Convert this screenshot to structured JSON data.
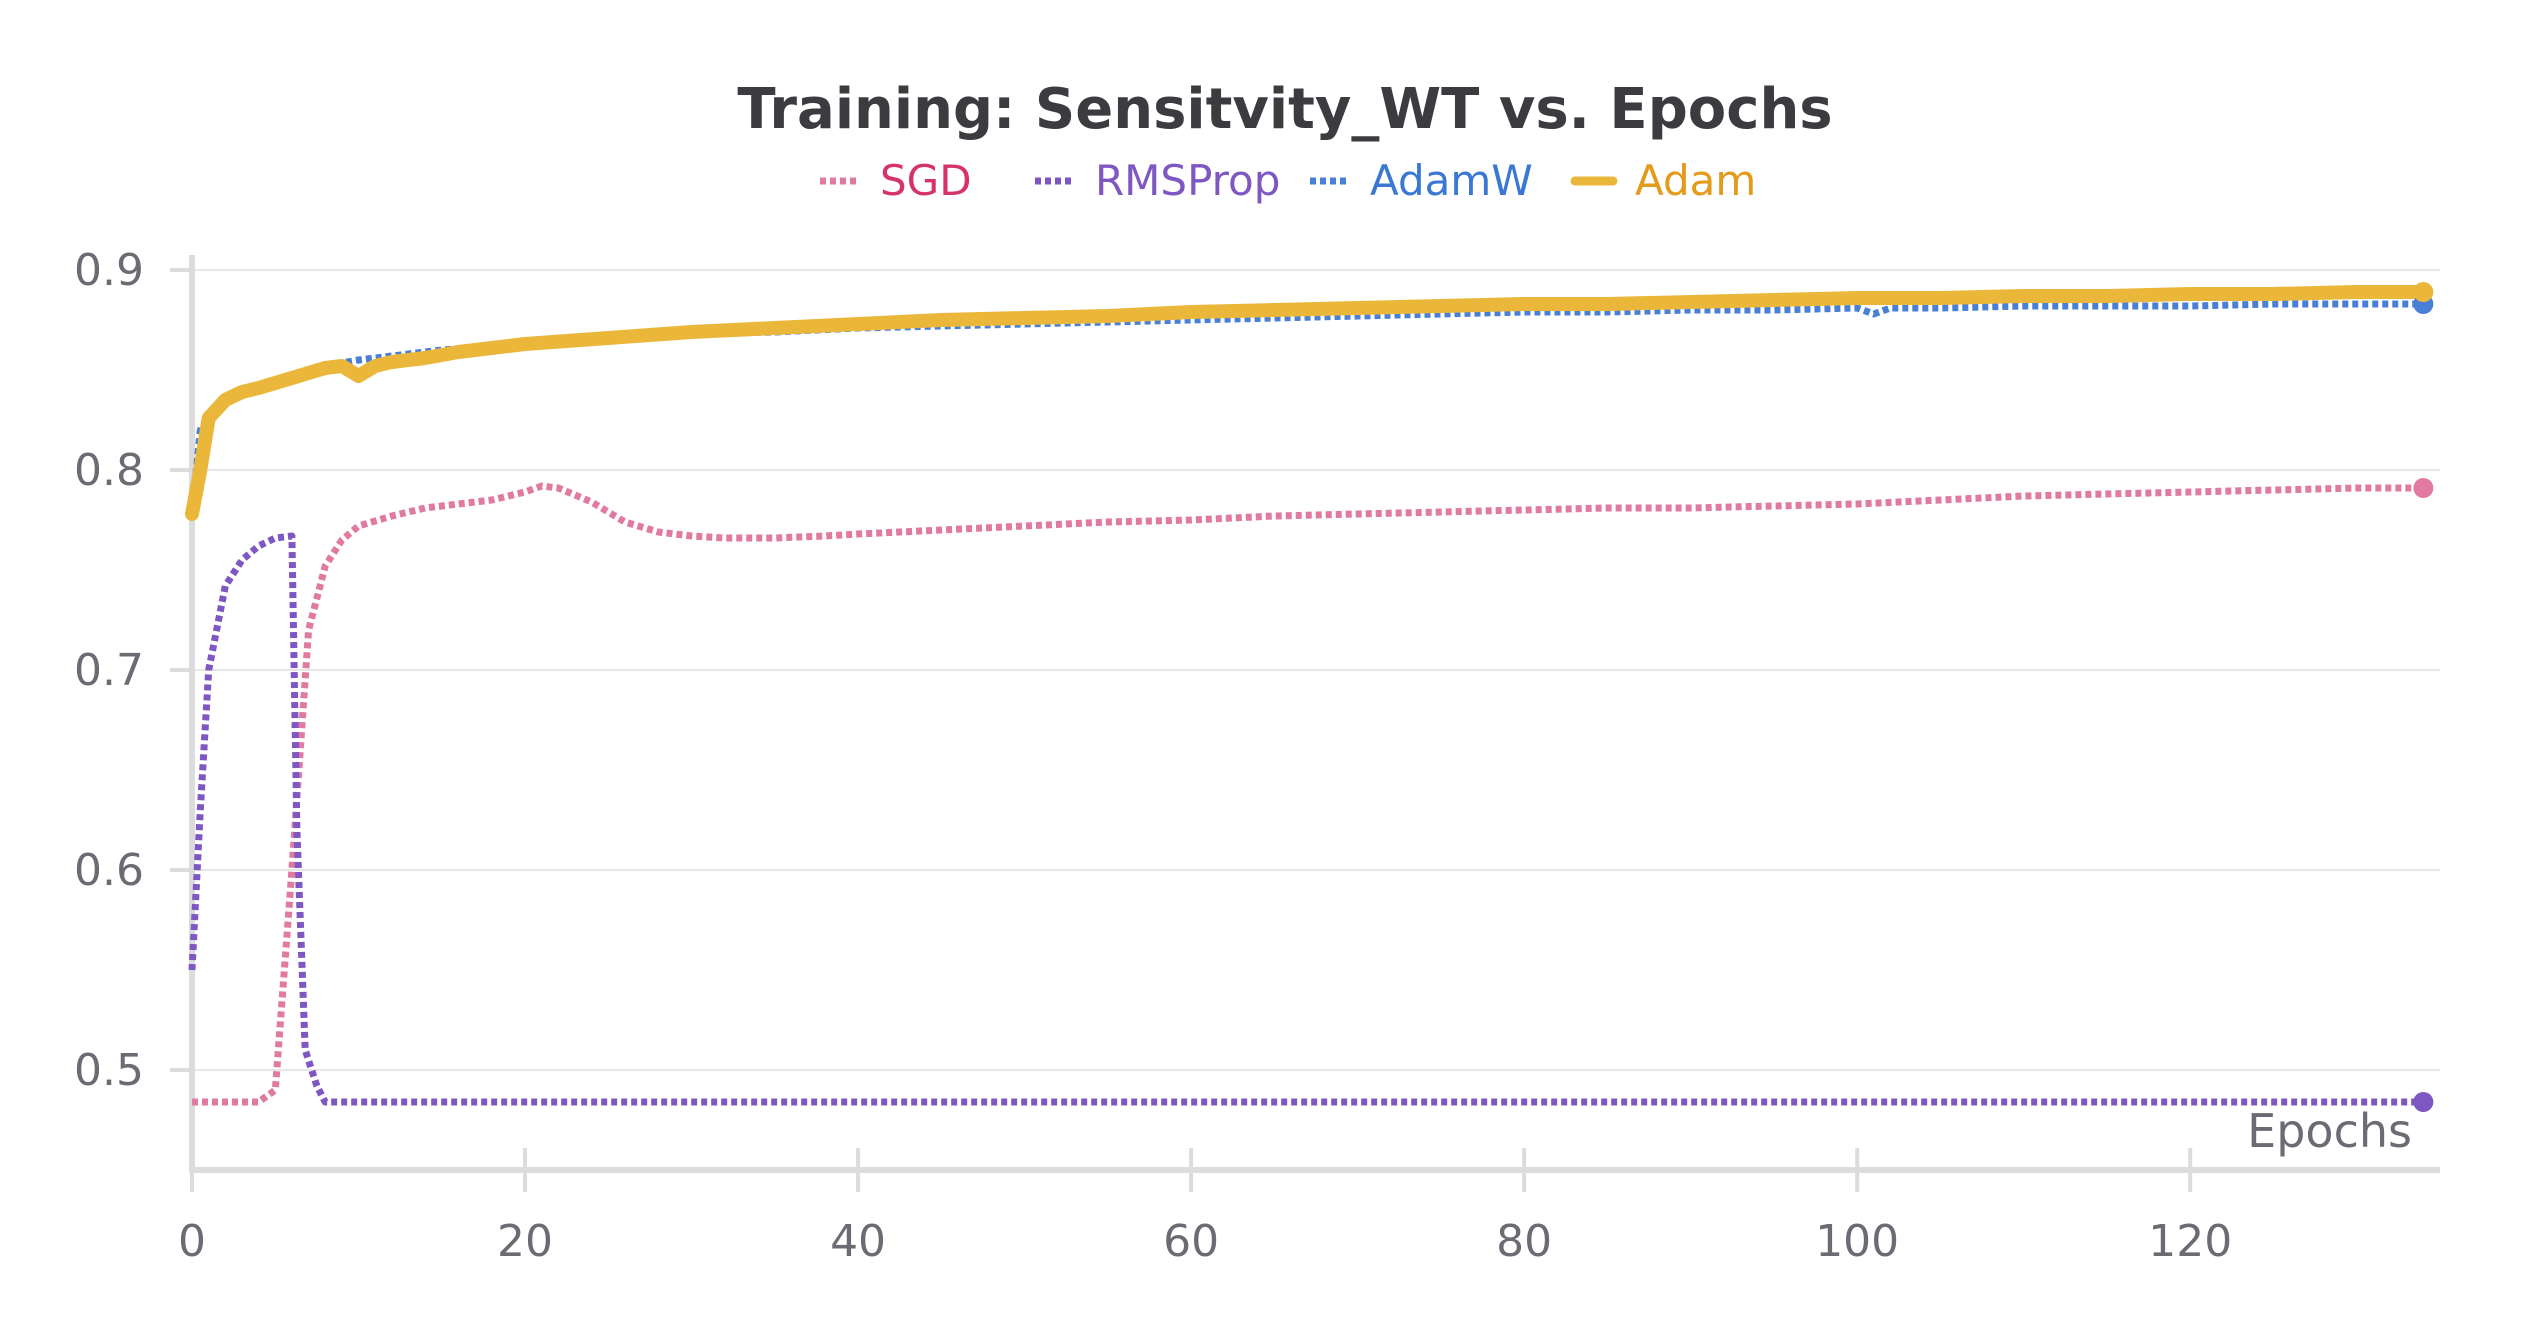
{
  "chart_data": {
    "type": "line",
    "title": "Training: Sensitvity_WT vs. Epochs",
    "xlabel": "Epochs",
    "ylabel": "",
    "xlim": [
      0,
      135
    ],
    "ylim": [
      0.45,
      0.92
    ],
    "x_ticks": [
      0,
      20,
      40,
      60,
      80,
      100,
      120
    ],
    "y_ticks": [
      0.5,
      0.6,
      0.7,
      0.8,
      0.9
    ],
    "grid": true,
    "legend_position": "top-center",
    "series": [
      {
        "name": "SGD",
        "color": "#e07aa1",
        "label_color": "#d6336c",
        "style": "dotted",
        "points": [
          [
            0,
            0.484
          ],
          [
            1,
            0.484
          ],
          [
            2,
            0.484
          ],
          [
            3,
            0.484
          ],
          [
            4,
            0.484
          ],
          [
            5,
            0.49
          ],
          [
            6,
            0.6
          ],
          [
            7,
            0.72
          ],
          [
            8,
            0.752
          ],
          [
            9,
            0.765
          ],
          [
            10,
            0.772
          ],
          [
            12,
            0.777
          ],
          [
            14,
            0.781
          ],
          [
            16,
            0.783
          ],
          [
            18,
            0.785
          ],
          [
            20,
            0.789
          ],
          [
            21,
            0.792
          ],
          [
            22,
            0.791
          ],
          [
            24,
            0.784
          ],
          [
            26,
            0.774
          ],
          [
            28,
            0.769
          ],
          [
            30,
            0.767
          ],
          [
            32,
            0.766
          ],
          [
            35,
            0.766
          ],
          [
            38,
            0.767
          ],
          [
            40,
            0.768
          ],
          [
            45,
            0.77
          ],
          [
            50,
            0.772
          ],
          [
            55,
            0.774
          ],
          [
            60,
            0.775
          ],
          [
            65,
            0.777
          ],
          [
            70,
            0.778
          ],
          [
            75,
            0.779
          ],
          [
            80,
            0.78
          ],
          [
            85,
            0.781
          ],
          [
            90,
            0.781
          ],
          [
            95,
            0.782
          ],
          [
            100,
            0.783
          ],
          [
            105,
            0.785
          ],
          [
            110,
            0.787
          ],
          [
            115,
            0.788
          ],
          [
            120,
            0.789
          ],
          [
            125,
            0.79
          ],
          [
            130,
            0.791
          ],
          [
            134,
            0.791
          ]
        ]
      },
      {
        "name": "RMSProp",
        "color": "#7e57c2",
        "label_color": "#7e57c2",
        "style": "dotted",
        "points": [
          [
            0,
            0.55
          ],
          [
            0.5,
            0.63
          ],
          [
            1,
            0.7
          ],
          [
            2,
            0.742
          ],
          [
            3,
            0.755
          ],
          [
            4,
            0.762
          ],
          [
            5,
            0.766
          ],
          [
            6,
            0.767
          ],
          [
            6.3,
            0.62
          ],
          [
            6.8,
            0.51
          ],
          [
            7.5,
            0.492
          ],
          [
            8,
            0.484
          ],
          [
            10,
            0.484
          ],
          [
            20,
            0.484
          ],
          [
            40,
            0.484
          ],
          [
            60,
            0.484
          ],
          [
            80,
            0.484
          ],
          [
            100,
            0.484
          ],
          [
            120,
            0.484
          ],
          [
            134,
            0.484
          ]
        ]
      },
      {
        "name": "AdamW",
        "color": "#4a7fd6",
        "label_color": "#3a78d4",
        "style": "dotted",
        "points": [
          [
            0,
            0.778
          ],
          [
            0.5,
            0.82
          ],
          [
            1,
            0.826
          ],
          [
            2,
            0.834
          ],
          [
            3,
            0.839
          ],
          [
            4,
            0.842
          ],
          [
            6,
            0.847
          ],
          [
            8,
            0.852
          ],
          [
            10,
            0.855
          ],
          [
            12,
            0.857
          ],
          [
            15,
            0.86
          ],
          [
            20,
            0.863
          ],
          [
            25,
            0.866
          ],
          [
            30,
            0.868
          ],
          [
            35,
            0.869
          ],
          [
            40,
            0.871
          ],
          [
            45,
            0.872
          ],
          [
            50,
            0.873
          ],
          [
            55,
            0.874
          ],
          [
            60,
            0.875
          ],
          [
            65,
            0.876
          ],
          [
            70,
            0.877
          ],
          [
            75,
            0.878
          ],
          [
            80,
            0.879
          ],
          [
            85,
            0.879
          ],
          [
            90,
            0.88
          ],
          [
            95,
            0.88
          ],
          [
            100,
            0.881
          ],
          [
            101,
            0.878
          ],
          [
            102,
            0.881
          ],
          [
            105,
            0.881
          ],
          [
            110,
            0.882
          ],
          [
            115,
            0.882
          ],
          [
            120,
            0.882
          ],
          [
            125,
            0.883
          ],
          [
            130,
            0.883
          ],
          [
            134,
            0.883
          ]
        ]
      },
      {
        "name": "Adam",
        "color": "#ebb73b",
        "label_color": "#e49a1a",
        "style": "solid",
        "points": [
          [
            0,
            0.778
          ],
          [
            0.5,
            0.8
          ],
          [
            1,
            0.826
          ],
          [
            2,
            0.835
          ],
          [
            3,
            0.839
          ],
          [
            4,
            0.841
          ],
          [
            6,
            0.846
          ],
          [
            8,
            0.851
          ],
          [
            9,
            0.852
          ],
          [
            10,
            0.847
          ],
          [
            11,
            0.852
          ],
          [
            12,
            0.854
          ],
          [
            14,
            0.856
          ],
          [
            16,
            0.859
          ],
          [
            18,
            0.861
          ],
          [
            20,
            0.863
          ],
          [
            25,
            0.866
          ],
          [
            30,
            0.869
          ],
          [
            35,
            0.871
          ],
          [
            40,
            0.873
          ],
          [
            45,
            0.875
          ],
          [
            50,
            0.876
          ],
          [
            55,
            0.877
          ],
          [
            60,
            0.879
          ],
          [
            65,
            0.88
          ],
          [
            70,
            0.881
          ],
          [
            75,
            0.882
          ],
          [
            80,
            0.883
          ],
          [
            85,
            0.883
          ],
          [
            90,
            0.884
          ],
          [
            95,
            0.885
          ],
          [
            100,
            0.886
          ],
          [
            105,
            0.886
          ],
          [
            110,
            0.887
          ],
          [
            115,
            0.887
          ],
          [
            120,
            0.888
          ],
          [
            125,
            0.888
          ],
          [
            130,
            0.889
          ],
          [
            134,
            0.889
          ]
        ]
      }
    ]
  }
}
